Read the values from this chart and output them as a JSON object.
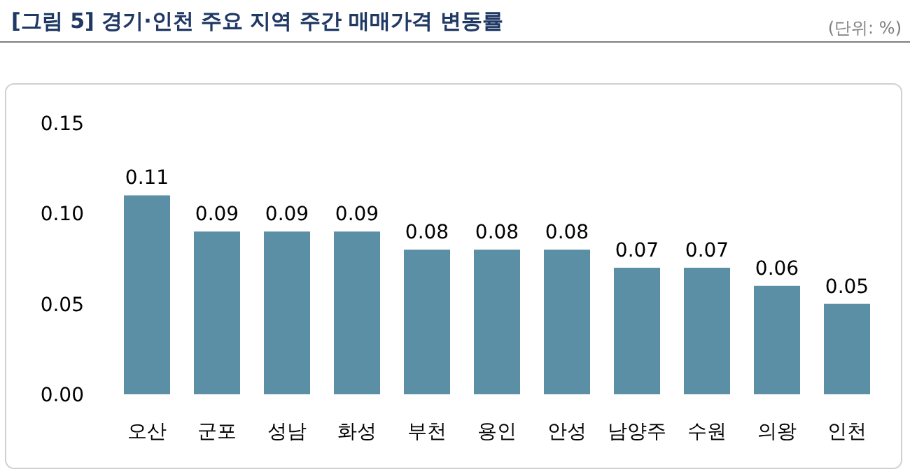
{
  "chart_data": {
    "type": "bar",
    "title": "[그림 5] 경기·인천 주요 지역 주간 매매가격 변동률",
    "annotations": [
      "(단위: %)"
    ],
    "categories": [
      "오산",
      "군포",
      "성남",
      "화성",
      "부천",
      "용인",
      "안성",
      "남양주",
      "수원",
      "의왕",
      "인천"
    ],
    "values": [
      0.11,
      0.09,
      0.09,
      0.09,
      0.08,
      0.08,
      0.08,
      0.07,
      0.07,
      0.06,
      0.05
    ],
    "color": "#5b8fa6",
    "ylim": [
      0,
      0.15
    ],
    "yticks": [
      {
        "value": 0,
        "label": "0.00"
      },
      {
        "value": 0.05,
        "label": "0.05"
      },
      {
        "value": 0.1,
        "label": "0.10"
      },
      {
        "value": 0.15,
        "label": "0.15"
      }
    ],
    "data_labels": true
  }
}
